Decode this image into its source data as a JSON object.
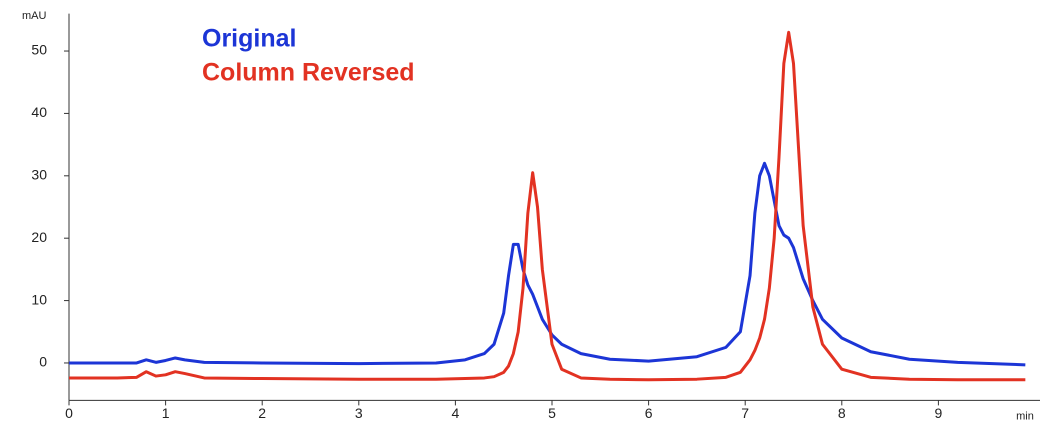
{
  "chart_data": {
    "type": "line",
    "y_label": "mAU",
    "x_label": "min",
    "x": [
      0,
      0.5,
      0.7,
      0.8,
      0.9,
      1.0,
      1.1,
      1.2,
      1.4,
      2,
      3,
      3.8,
      4.1,
      4.3,
      4.4,
      4.5,
      4.55,
      4.6,
      4.65,
      4.7,
      4.75,
      4.8,
      4.85,
      4.9,
      5.0,
      5.1,
      5.3,
      5.6,
      6.0,
      6.5,
      6.8,
      6.95,
      7.05,
      7.1,
      7.15,
      7.2,
      7.25,
      7.3,
      7.35,
      7.4,
      7.45,
      7.5,
      7.55,
      7.6,
      7.7,
      7.8,
      8.0,
      8.3,
      8.7,
      9.2,
      9.9
    ],
    "series": [
      {
        "name": "Original",
        "color": "#1c35d6",
        "values": [
          0,
          0,
          0,
          0.5,
          0.1,
          0.4,
          0.8,
          0.5,
          0.1,
          0,
          -0.1,
          0,
          0.5,
          1.5,
          3,
          8,
          14,
          19,
          19,
          15,
          12.5,
          11,
          9,
          7,
          4.5,
          3,
          1.5,
          0.6,
          0.3,
          1,
          2.5,
          5,
          14,
          24,
          30,
          32,
          30,
          26,
          22,
          20.5,
          20,
          18.5,
          16,
          13.5,
          10,
          7,
          4,
          1.8,
          0.6,
          0.1,
          -0.3
        ]
      },
      {
        "name": "Column Reversed",
        "color": "#e23222",
        "values": [
          -2.4,
          -2.4,
          -2.3,
          -1.4,
          -2.1,
          -1.9,
          -1.4,
          -1.7,
          -2.4,
          -2.5,
          -2.6,
          -2.6,
          -2.5,
          -2.4,
          -2.2,
          -1.5,
          -0.5,
          1.5,
          5,
          12,
          24,
          30.5,
          25,
          15,
          3,
          -1,
          -2.4,
          -2.6,
          -2.7,
          -2.6,
          -2.3,
          -1.5,
          0.5,
          2,
          4,
          7,
          12,
          20,
          33,
          48,
          53,
          48,
          35,
          22,
          9,
          3,
          -1,
          -2.3,
          -2.6,
          -2.7,
          -2.7
        ]
      }
    ],
    "xlim": [
      0,
      10
    ],
    "xticks": [
      0,
      1,
      2,
      3,
      4,
      5,
      6,
      7,
      8,
      9
    ],
    "ylim": [
      -6,
      56
    ],
    "yticks": [
      0,
      10,
      20,
      30,
      40,
      50
    ]
  }
}
